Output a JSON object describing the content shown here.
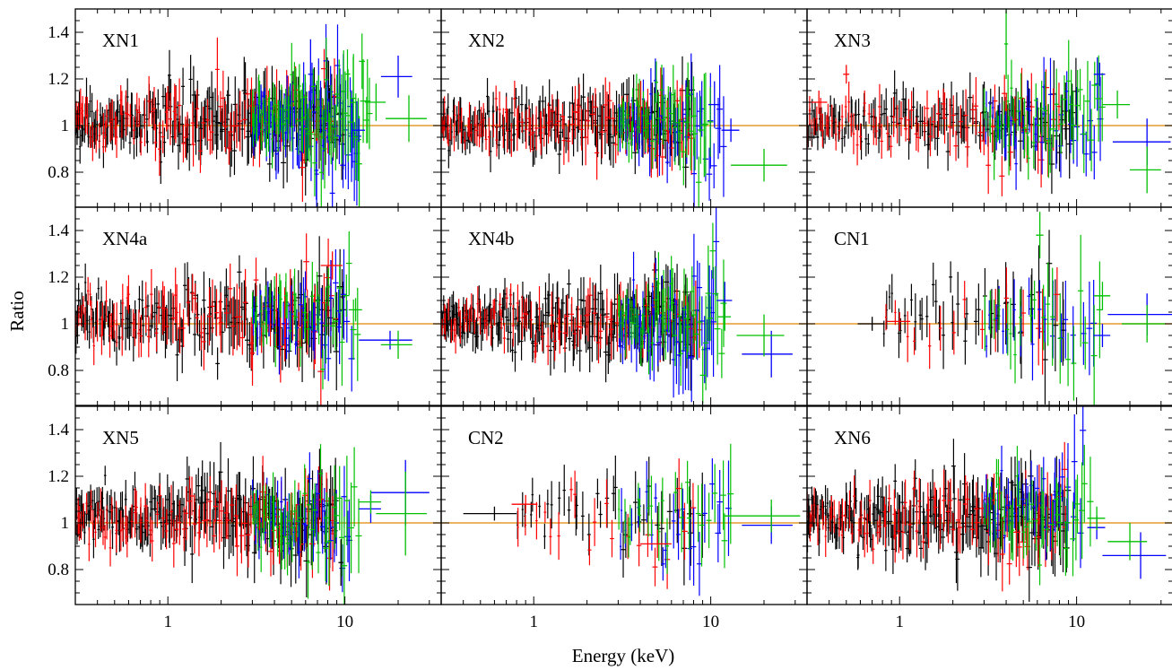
{
  "figure": {
    "xlabel": "Energy (keV)",
    "ylabel": "Ratio",
    "x_tick_labels": [
      "1",
      "10"
    ],
    "y_tick_labels": [
      "0.8",
      "1",
      "1.2",
      "1.4"
    ]
  },
  "colors": {
    "reference_line": "#e59a2c",
    "series": [
      "#000000",
      "#ff0000",
      "#0000ff",
      "#00c000"
    ]
  },
  "chart_data": {
    "type": "scatter",
    "layout": "3x3 grid of panels, shared axes",
    "xscale": "log",
    "xlim": [
      0.3,
      35
    ],
    "ylim": [
      0.65,
      1.5
    ],
    "reference_line_y": 1.0,
    "x_ticks": [
      1,
      10
    ],
    "y_ticks": [
      0.8,
      1.0,
      1.2,
      1.4
    ],
    "grid": false,
    "legend": "none",
    "panels": [
      {
        "name": "XN1",
        "series": [
          {
            "color": "black",
            "x_range": [
              0.3,
              10
            ],
            "y_mean": 1.01,
            "y_spread": 0.08,
            "n_points": 180
          },
          {
            "color": "red",
            "x_range": [
              0.3,
              9
            ],
            "y_mean": 1.02,
            "y_spread": 0.08,
            "n_points": 90
          },
          {
            "color": "blue",
            "x_range": [
              3,
              12
            ],
            "y_mean": 1.0,
            "y_spread": 0.1,
            "n_points": 70
          },
          {
            "color": "green",
            "x_range": [
              3,
              14
            ],
            "y_mean": 1.03,
            "y_spread": 0.1,
            "n_points": 70
          }
        ],
        "highlight_points": [
          {
            "color": "blue",
            "x": 20,
            "y": 1.21,
            "xerr": 4,
            "yerr": 0.09
          },
          {
            "color": "green",
            "x": 15,
            "y": 1.1,
            "xerr": 2,
            "yerr": 0.08
          },
          {
            "color": "green",
            "x": 23,
            "y": 1.03,
            "xerr": 6,
            "yerr": 0.1
          },
          {
            "color": "blue",
            "x": 12,
            "y": 0.98,
            "xerr": 1,
            "yerr": 0.05
          },
          {
            "color": "blue",
            "x": 6.4,
            "y": 1.22,
            "xerr": 0.2,
            "yerr": 0.15
          }
        ]
      },
      {
        "name": "XN2",
        "series": [
          {
            "color": "black",
            "x_range": [
              0.3,
              8
            ],
            "y_mean": 1.01,
            "y_spread": 0.07,
            "n_points": 150
          },
          {
            "color": "red",
            "x_range": [
              0.3,
              8
            ],
            "y_mean": 1.0,
            "y_spread": 0.07,
            "n_points": 90
          },
          {
            "color": "blue",
            "x_range": [
              3,
              12
            ],
            "y_mean": 1.02,
            "y_spread": 0.1,
            "n_points": 40
          },
          {
            "color": "green",
            "x_range": [
              3,
              10
            ],
            "y_mean": 1.03,
            "y_spread": 0.1,
            "n_points": 40
          }
        ],
        "highlight_points": [
          {
            "color": "green",
            "x": 20,
            "y": 0.83,
            "xerr": 7,
            "yerr": 0.07
          },
          {
            "color": "blue",
            "x": 13,
            "y": 0.98,
            "xerr": 1.5,
            "yerr": 0.05
          },
          {
            "color": "blue",
            "x": 10.5,
            "y": 1.09,
            "xerr": 0.8,
            "yerr": 0.1
          }
        ]
      },
      {
        "name": "XN3",
        "series": [
          {
            "color": "black",
            "x_range": [
              0.3,
              10
            ],
            "y_mean": 1.01,
            "y_spread": 0.07,
            "n_points": 120
          },
          {
            "color": "red",
            "x_range": [
              0.3,
              8
            ],
            "y_mean": 1.01,
            "y_spread": 0.07,
            "n_points": 70
          },
          {
            "color": "blue",
            "x_range": [
              3,
              14
            ],
            "y_mean": 1.0,
            "y_spread": 0.09,
            "n_points": 35
          },
          {
            "color": "green",
            "x_range": [
              3,
              14
            ],
            "y_mean": 1.02,
            "y_spread": 0.1,
            "n_points": 40
          }
        ],
        "highlight_points": [
          {
            "color": "blue",
            "x": 25,
            "y": 0.93,
            "xerr": 9,
            "yerr": 0.1
          },
          {
            "color": "green",
            "x": 25,
            "y": 0.81,
            "xerr": 5,
            "yerr": 0.1
          },
          {
            "color": "green",
            "x": 17,
            "y": 1.09,
            "xerr": 3,
            "yerr": 0.06
          },
          {
            "color": "blue",
            "x": 13.5,
            "y": 1.22,
            "xerr": 1,
            "yerr": 0.05
          },
          {
            "color": "red",
            "x": 0.35,
            "y": 1.1,
            "xerr": 0.04,
            "yerr": 0.05
          },
          {
            "color": "red",
            "x": 0.5,
            "y": 1.22,
            "xerr": 0.02,
            "yerr": 0.04
          },
          {
            "color": "green",
            "x": 4.0,
            "y": 1.35,
            "xerr": 0.1,
            "yerr": 0.15
          },
          {
            "color": "black",
            "x": 0.32,
            "y": 0.95,
            "xerr": 0.03,
            "yerr": 0.04
          }
        ]
      },
      {
        "name": "XN4a",
        "series": [
          {
            "color": "black",
            "x_range": [
              0.3,
              10
            ],
            "y_mean": 1.02,
            "y_spread": 0.08,
            "n_points": 150
          },
          {
            "color": "red",
            "x_range": [
              0.3,
              9
            ],
            "y_mean": 1.02,
            "y_spread": 0.08,
            "n_points": 80
          },
          {
            "color": "blue",
            "x_range": [
              3,
              11
            ],
            "y_mean": 1.02,
            "y_spread": 0.09,
            "n_points": 35
          },
          {
            "color": "green",
            "x_range": [
              3,
              12
            ],
            "y_mean": 1.04,
            "y_spread": 0.09,
            "n_points": 35
          }
        ],
        "highlight_points": [
          {
            "color": "blue",
            "x": 18,
            "y": 0.93,
            "xerr": 6,
            "yerr": 0.04
          },
          {
            "color": "green",
            "x": 20,
            "y": 0.91,
            "xerr": 4,
            "yerr": 0.06
          },
          {
            "color": "red",
            "x": 8.5,
            "y": 1.25,
            "xerr": 1.2,
            "yerr": 0.06
          },
          {
            "color": "green",
            "x": 11.5,
            "y": 1.06,
            "xerr": 1,
            "yerr": 0.05
          }
        ]
      },
      {
        "name": "XN4b",
        "series": [
          {
            "color": "black",
            "x_range": [
              0.3,
              8
            ],
            "y_mean": 1.01,
            "y_spread": 0.07,
            "n_points": 200
          },
          {
            "color": "red",
            "x_range": [
              0.3,
              9
            ],
            "y_mean": 1.01,
            "y_spread": 0.07,
            "n_points": 80
          },
          {
            "color": "blue",
            "x_range": [
              3,
              11
            ],
            "y_mean": 1.0,
            "y_spread": 0.11,
            "n_points": 45
          },
          {
            "color": "green",
            "x_range": [
              3,
              12
            ],
            "y_mean": 1.02,
            "y_spread": 0.1,
            "n_points": 45
          }
        ],
        "highlight_points": [
          {
            "color": "blue",
            "x": 22,
            "y": 0.87,
            "xerr": 7,
            "yerr": 0.1
          },
          {
            "color": "green",
            "x": 20,
            "y": 0.95,
            "xerr": 6,
            "yerr": 0.09
          },
          {
            "color": "blue",
            "x": 12,
            "y": 1.1,
            "xerr": 1.2,
            "yerr": 0.08
          },
          {
            "color": "green",
            "x": 12,
            "y": 1.03,
            "xerr": 1,
            "yerr": 0.06
          }
        ]
      },
      {
        "name": "CN1",
        "series": [
          {
            "color": "black",
            "x_range": [
              0.8,
              9
            ],
            "y_mean": 1.04,
            "y_spread": 0.1,
            "n_points": 40
          },
          {
            "color": "red",
            "x_range": [
              0.8,
              9
            ],
            "y_mean": 1.0,
            "y_spread": 0.09,
            "n_points": 15
          },
          {
            "color": "blue",
            "x_range": [
              3,
              13
            ],
            "y_mean": 1.0,
            "y_spread": 0.1,
            "n_points": 20
          },
          {
            "color": "green",
            "x_range": [
              3,
              14
            ],
            "y_mean": 1.03,
            "y_spread": 0.12,
            "n_points": 20
          }
        ],
        "highlight_points": [
          {
            "color": "blue",
            "x": 25,
            "y": 1.04,
            "xerr": 10,
            "yerr": 0.09
          },
          {
            "color": "green",
            "x": 25,
            "y": 1.0,
            "xerr": 7,
            "yerr": 0.08
          },
          {
            "color": "blue",
            "x": 14,
            "y": 0.95,
            "xerr": 1.5,
            "yerr": 0.05
          },
          {
            "color": "green",
            "x": 14,
            "y": 1.12,
            "xerr": 1.5,
            "yerr": 0.06
          },
          {
            "color": "black",
            "x": 0.7,
            "y": 1.0,
            "xerr": 0.12,
            "yerr": 0.03
          },
          {
            "color": "red",
            "x": 1.0,
            "y": 1.01,
            "xerr": 0.15,
            "yerr": 0.04
          },
          {
            "color": "green",
            "x": 6.2,
            "y": 1.38,
            "xerr": 0.3,
            "yerr": 0.1
          }
        ]
      },
      {
        "name": "XN5",
        "series": [
          {
            "color": "black",
            "x_range": [
              0.3,
              9
            ],
            "y_mean": 1.02,
            "y_spread": 0.08,
            "n_points": 180
          },
          {
            "color": "red",
            "x_range": [
              0.3,
              9
            ],
            "y_mean": 1.01,
            "y_spread": 0.08,
            "n_points": 90
          },
          {
            "color": "blue",
            "x_range": [
              3,
              11
            ],
            "y_mean": 1.0,
            "y_spread": 0.09,
            "n_points": 35
          },
          {
            "color": "green",
            "x_range": [
              3,
              12
            ],
            "y_mean": 1.02,
            "y_spread": 0.1,
            "n_points": 40
          }
        ],
        "highlight_points": [
          {
            "color": "blue",
            "x": 22,
            "y": 1.13,
            "xerr": 8,
            "yerr": 0.14
          },
          {
            "color": "green",
            "x": 22,
            "y": 1.04,
            "xerr": 7,
            "yerr": 0.18
          },
          {
            "color": "blue",
            "x": 14,
            "y": 1.06,
            "xerr": 2,
            "yerr": 0.06
          },
          {
            "color": "green",
            "x": 14,
            "y": 1.09,
            "xerr": 2,
            "yerr": 0.05
          },
          {
            "color": "black",
            "x": 9.5,
            "y": 0.83,
            "xerr": 0.3,
            "yerr": 0.1
          }
        ]
      },
      {
        "name": "CN2",
        "series": [
          {
            "color": "black",
            "x_range": [
              0.8,
              9
            ],
            "y_mean": 1.04,
            "y_spread": 0.08,
            "n_points": 35
          },
          {
            "color": "red",
            "x_range": [
              0.8,
              9
            ],
            "y_mean": 1.0,
            "y_spread": 0.08,
            "n_points": 20
          },
          {
            "color": "blue",
            "x_range": [
              3,
              13
            ],
            "y_mean": 1.03,
            "y_spread": 0.1,
            "n_points": 22
          },
          {
            "color": "green",
            "x_range": [
              3,
              14
            ],
            "y_mean": 1.04,
            "y_spread": 0.1,
            "n_points": 22
          }
        ],
        "highlight_points": [
          {
            "color": "blue",
            "x": 22,
            "y": 0.99,
            "xerr": 7,
            "yerr": 0.08
          },
          {
            "color": "green",
            "x": 22,
            "y": 1.03,
            "xerr": 10,
            "yerr": 0.07
          },
          {
            "color": "black",
            "x": 0.6,
            "y": 1.04,
            "xerr": 0.2,
            "yerr": 0.03
          },
          {
            "color": "red",
            "x": 0.9,
            "y": 1.08,
            "xerr": 0.15,
            "yerr": 0.04
          },
          {
            "color": "red",
            "x": 5,
            "y": 0.91,
            "xerr": 1,
            "yerr": 0.06
          }
        ]
      },
      {
        "name": "XN6",
        "series": [
          {
            "color": "black",
            "x_range": [
              0.3,
              9
            ],
            "y_mean": 1.02,
            "y_spread": 0.08,
            "n_points": 190
          },
          {
            "color": "red",
            "x_range": [
              0.3,
              9
            ],
            "y_mean": 1.02,
            "y_spread": 0.08,
            "n_points": 80
          },
          {
            "color": "blue",
            "x_range": [
              3,
              11
            ],
            "y_mean": 1.05,
            "y_spread": 0.1,
            "n_points": 35
          },
          {
            "color": "green",
            "x_range": [
              3,
              12
            ],
            "y_mean": 1.05,
            "y_spread": 0.1,
            "n_points": 35
          }
        ],
        "highlight_points": [
          {
            "color": "blue",
            "x": 23,
            "y": 0.86,
            "xerr": 9,
            "yerr": 0.1
          },
          {
            "color": "green",
            "x": 20,
            "y": 0.92,
            "xerr": 5,
            "yerr": 0.08
          },
          {
            "color": "blue",
            "x": 13,
            "y": 0.98,
            "xerr": 1.5,
            "yerr": 0.05
          },
          {
            "color": "green",
            "x": 13,
            "y": 1.02,
            "xerr": 1.5,
            "yerr": 0.05
          }
        ]
      }
    ]
  }
}
